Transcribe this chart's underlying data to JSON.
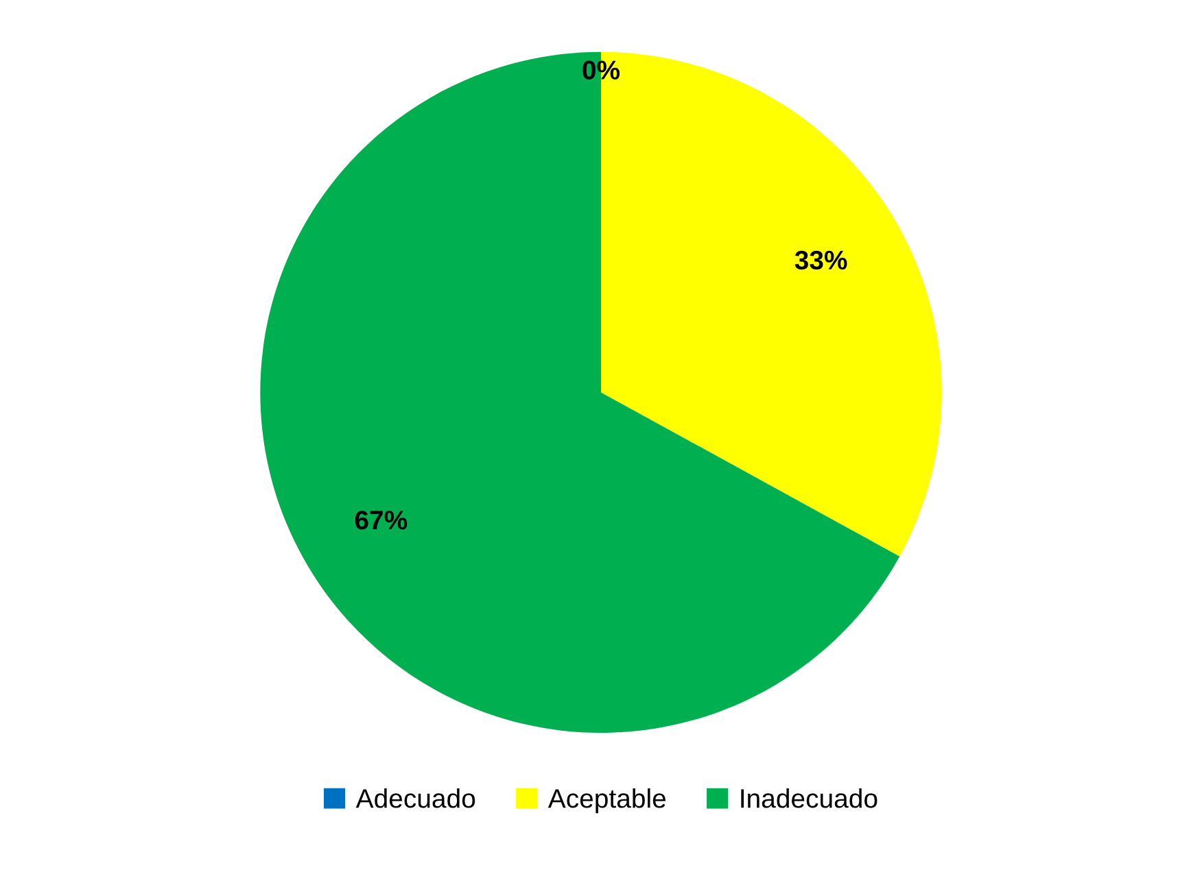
{
  "chart_data": {
    "type": "pie",
    "categories": [
      "Adecuado",
      "Aceptable",
      "Inadecuado"
    ],
    "values": [
      0,
      33,
      67
    ],
    "colors": [
      "#0070c0",
      "#ffff00",
      "#00b050"
    ],
    "value_labels": [
      "0%",
      "33%",
      "67%"
    ],
    "legend": "bottom"
  }
}
